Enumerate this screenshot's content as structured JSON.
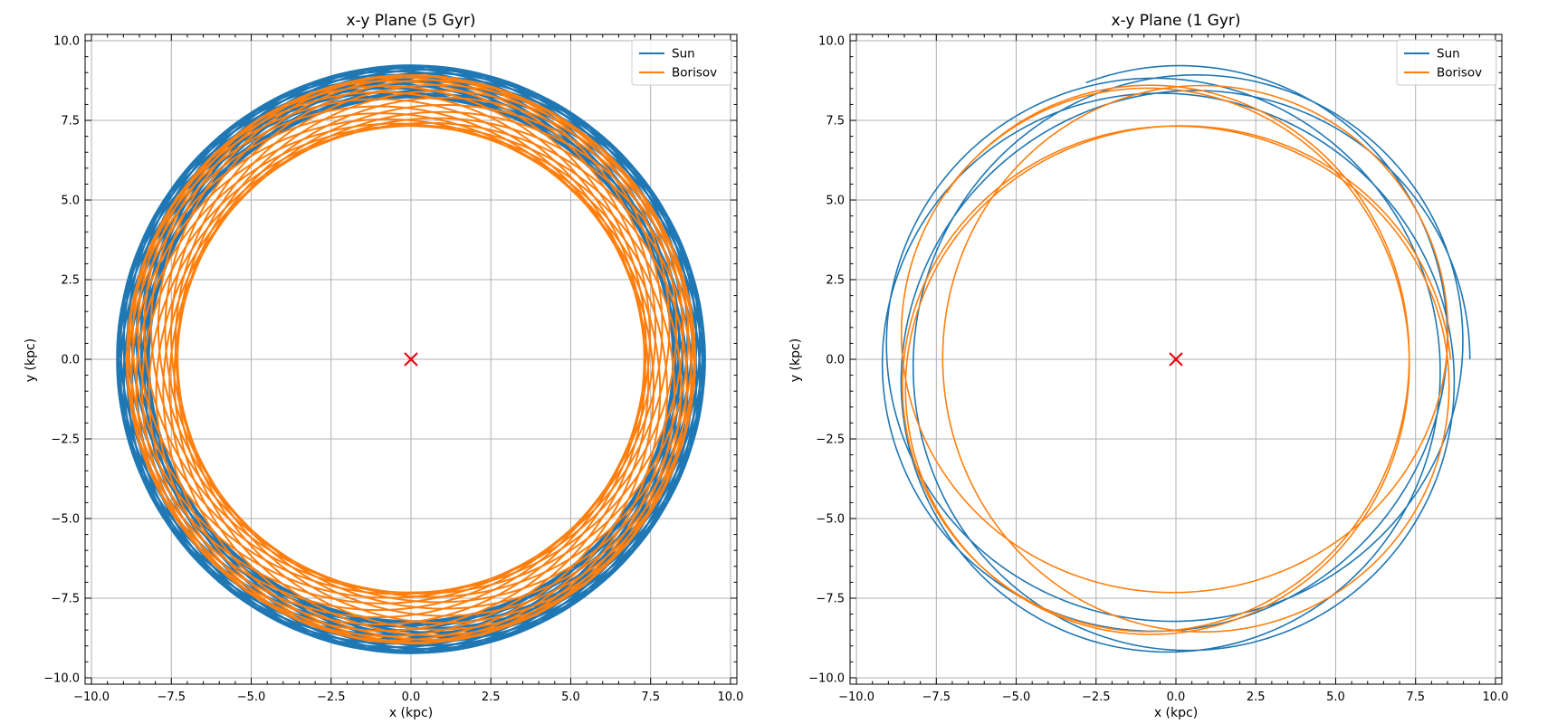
{
  "colors": {
    "sun": "#1f77b4",
    "borisov": "#ff7f0e",
    "center": "#e8000b",
    "grid": "#b0b0b0"
  },
  "chart_data": [
    {
      "type": "line",
      "title": "x-y Plane (5 Gyr)",
      "xlabel": "x (kpc)",
      "ylabel": "y (kpc)",
      "xlim": [
        -10.2,
        10.2
      ],
      "ylim": [
        -10.2,
        10.2
      ],
      "xticks": [
        "−10.0",
        "−7.5",
        "−5.0",
        "−2.5",
        "0.0",
        "2.5",
        "5.0",
        "7.5",
        "10.0"
      ],
      "yticks": [
        "10.0",
        "7.5",
        "5.0",
        "2.5",
        "0.0",
        "−2.5",
        "−5.0",
        "−7.5",
        "−10.0"
      ],
      "grid": true,
      "legend_position": "top-right",
      "center_marker": {
        "x": 0,
        "y": 0,
        "symbol": "x"
      },
      "series": [
        {
          "name": "Sun",
          "orbit": {
            "r_min": 8.2,
            "r_max": 9.2,
            "loops": 22,
            "radial_cycles": 31,
            "line_width": 2.4
          }
        },
        {
          "name": "Borisov",
          "orbit": {
            "r_min": 7.3,
            "r_max": 8.9,
            "loops": 22,
            "radial_cycles": 29,
            "line_width": 2.0
          }
        }
      ]
    },
    {
      "type": "line",
      "title": "x-y Plane (1 Gyr)",
      "xlabel": "x (kpc)",
      "ylabel": "y (kpc)",
      "xlim": [
        -10.2,
        10.2
      ],
      "ylim": [
        -10.2,
        10.2
      ],
      "xticks": [
        "−10.0",
        "−7.5",
        "−5.0",
        "−2.5",
        "0.0",
        "2.5",
        "5.0",
        "7.5",
        "10.0"
      ],
      "yticks": [
        "10.0",
        "7.5",
        "5.0",
        "2.5",
        "0.0",
        "−2.5",
        "−5.0",
        "−7.5",
        "−10.0"
      ],
      "grid": true,
      "legend_position": "top-right",
      "center_marker": {
        "x": 0,
        "y": 0,
        "symbol": "x"
      },
      "series": [
        {
          "name": "Sun",
          "orbit": {
            "r_min": 8.2,
            "r_max": 9.2,
            "loops": 4.3,
            "radial_cycles": 6.1,
            "line_width": 1.6
          }
        },
        {
          "name": "Borisov",
          "orbit": {
            "r_min": 7.3,
            "r_max": 8.9,
            "loops": 4.4,
            "radial_cycles": 5.9,
            "line_width": 1.6
          }
        }
      ]
    }
  ]
}
